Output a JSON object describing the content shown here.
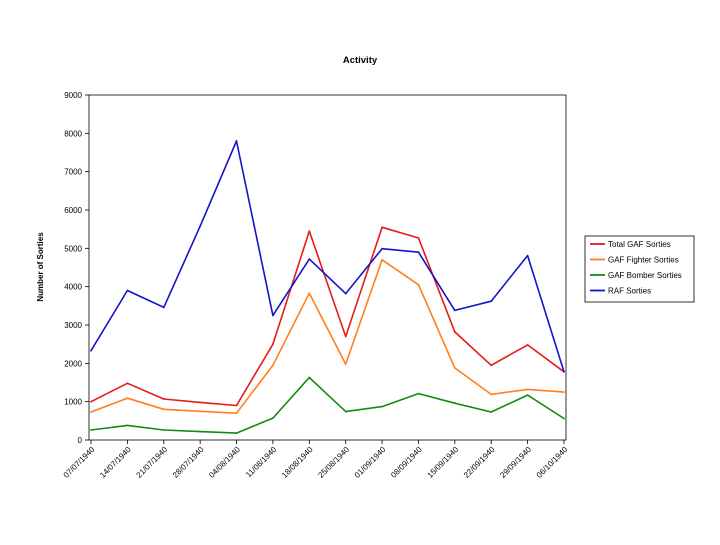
{
  "chart_data": {
    "type": "line",
    "title": "Activity",
    "xlabel": "",
    "ylabel": "Number of Sorties",
    "ylim": [
      0,
      9000
    ],
    "yticks": [
      0,
      1000,
      2000,
      3000,
      4000,
      5000,
      6000,
      7000,
      8000,
      9000
    ],
    "categories": [
      "07/07/1940",
      "14/07/1940",
      "21/07/1940",
      "28/07/1940",
      "04/08/1940",
      "11/08/1940",
      "18/08/1940",
      "25/08/1940",
      "01/09/1940",
      "08/09/1940",
      "15/09/1940",
      "22/09/1940",
      "29/09/1940",
      "06/10/1940"
    ],
    "legend_position": "right",
    "grid": false,
    "series": [
      {
        "name": "Total GAF Sorties",
        "color": "#e41b17",
        "values": [
          1000,
          1480,
          1070,
          980,
          900,
          2500,
          5450,
          2700,
          5550,
          5270,
          2820,
          1950,
          2480,
          1780
        ]
      },
      {
        "name": "GAF Fighter Sorties",
        "color": "#ff7f20",
        "values": [
          730,
          1090,
          800,
          750,
          700,
          1950,
          3830,
          1980,
          4700,
          4050,
          1880,
          1190,
          1320,
          1250
        ]
      },
      {
        "name": "GAF Bomber Sorties",
        "color": "#138a13",
        "values": [
          260,
          380,
          260,
          220,
          180,
          570,
          1630,
          740,
          870,
          1210,
          960,
          730,
          1170,
          560
        ]
      },
      {
        "name": "RAF Sorties",
        "color": "#1414c8",
        "values": [
          2330,
          3900,
          3460,
          5580,
          7800,
          3250,
          4720,
          3820,
          4990,
          4900,
          3380,
          3620,
          4810,
          1780
        ]
      }
    ]
  }
}
